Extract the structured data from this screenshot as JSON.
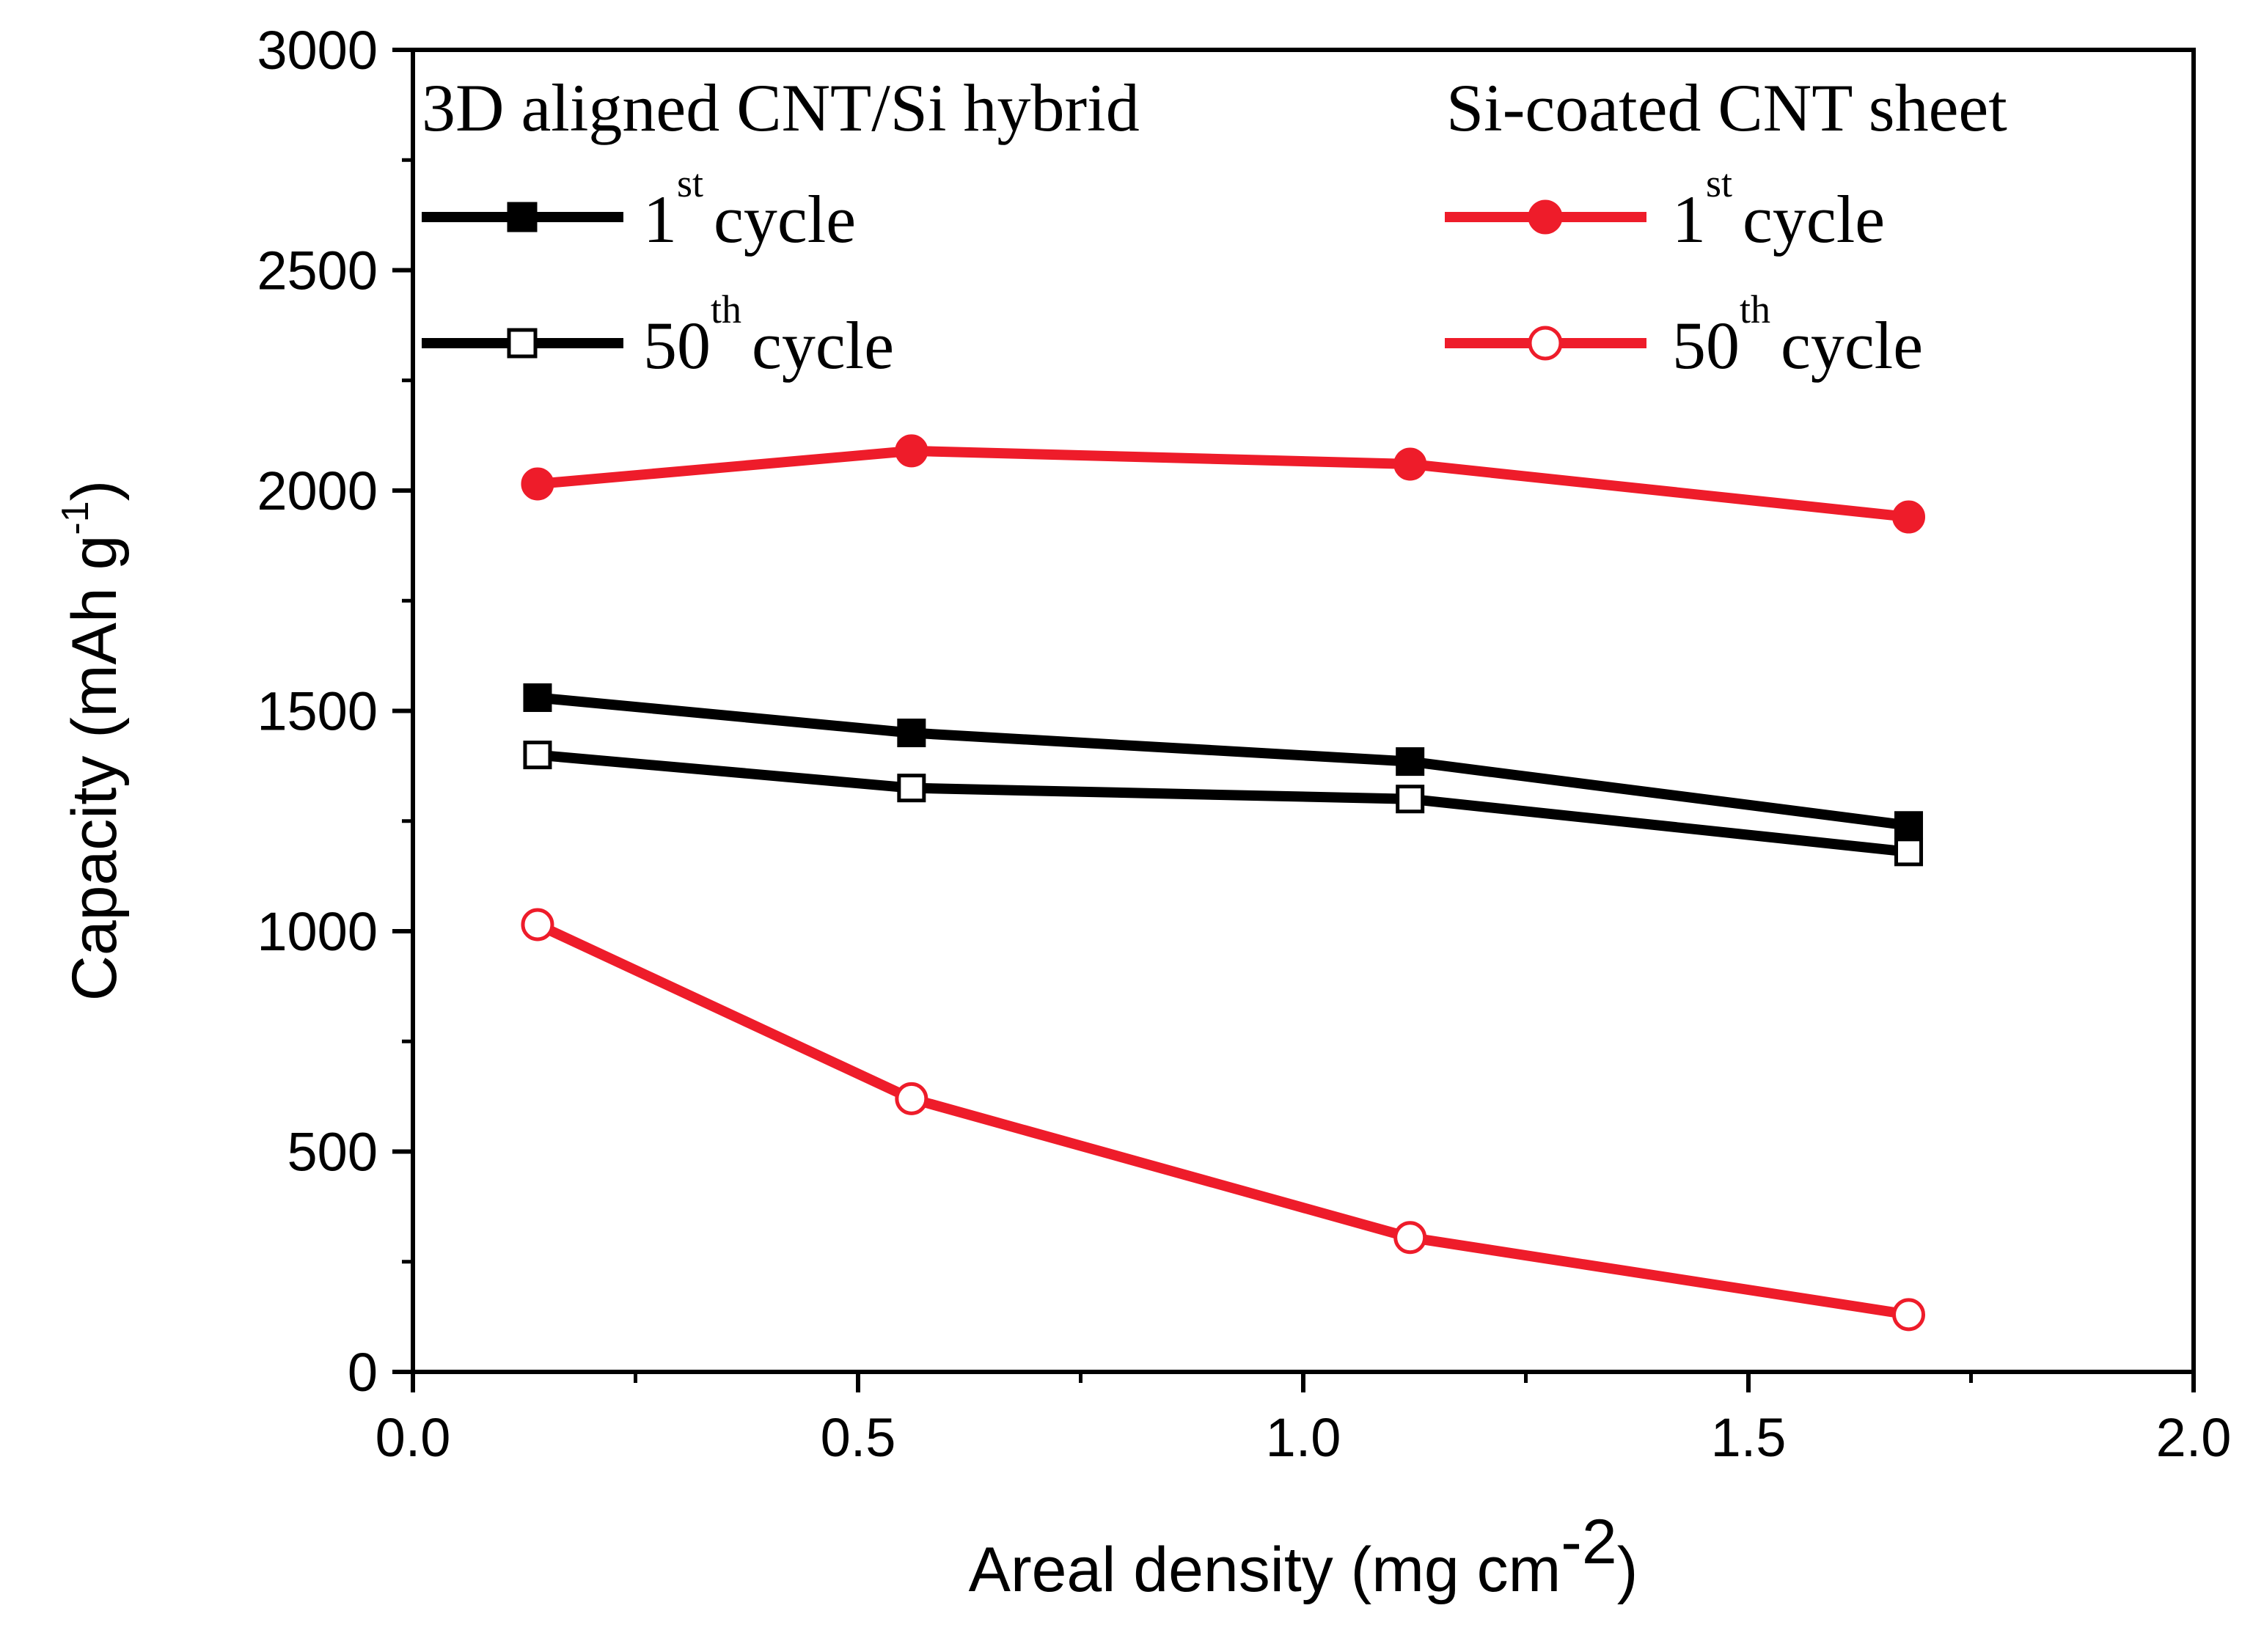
{
  "chart_data": {
    "type": "line",
    "title": "",
    "xlabel": "Areal density (mg cm",
    "xlabel_sup": "-2",
    "xlabel_end": ")",
    "ylabel": "Capacity (mAh g",
    "ylabel_sup": "-1",
    "ylabel_end": ")",
    "xlim": [
      0.0,
      2.0
    ],
    "ylim": [
      0,
      3000
    ],
    "x_ticks": [
      0.0,
      0.5,
      1.0,
      1.5,
      2.0
    ],
    "x_tick_labels": [
      "0.0",
      "0.5",
      "1.0",
      "1.5",
      "2.0"
    ],
    "y_ticks": [
      0,
      500,
      1000,
      1500,
      2000,
      2500,
      3000
    ],
    "y_tick_labels": [
      "0",
      "500",
      "1000",
      "1500",
      "2000",
      "2500",
      "3000"
    ],
    "grid": false,
    "x": [
      0.14,
      0.56,
      1.12,
      1.68
    ],
    "legend_groups": [
      {
        "title": "3D aligned CNT/Si hybrid",
        "position": "top-left"
      },
      {
        "title": "Si-coated CNT sheet",
        "position": "top-right"
      }
    ],
    "series": [
      {
        "name": "1st cycle",
        "label_main": "1",
        "label_sup": "st",
        "label_rest": "cycle",
        "group": "3D aligned CNT/Si hybrid",
        "color": "#000000",
        "marker": "square",
        "filled": true,
        "values": [
          1530,
          1450,
          1385,
          1240
        ]
      },
      {
        "name": "50th cycle",
        "label_main": "50",
        "label_sup": "th",
        "label_rest": "cycle",
        "group": "3D aligned CNT/Si hybrid",
        "color": "#000000",
        "marker": "square",
        "filled": false,
        "values": [
          1400,
          1325,
          1300,
          1180
        ]
      },
      {
        "name": "1st cycle",
        "label_main": "1",
        "label_sup": "st",
        "label_rest": "cycle",
        "group": "Si-coated CNT sheet",
        "color": "#ee1c2a",
        "marker": "circle",
        "filled": true,
        "values": [
          2015,
          2090,
          2060,
          1940
        ]
      },
      {
        "name": "50th cycle",
        "label_main": "50",
        "label_sup": "th",
        "label_rest": "cycle",
        "group": "Si-coated CNT sheet",
        "color": "#ee1c2a",
        "marker": "circle",
        "filled": false,
        "values": [
          1015,
          620,
          305,
          130
        ]
      }
    ]
  }
}
